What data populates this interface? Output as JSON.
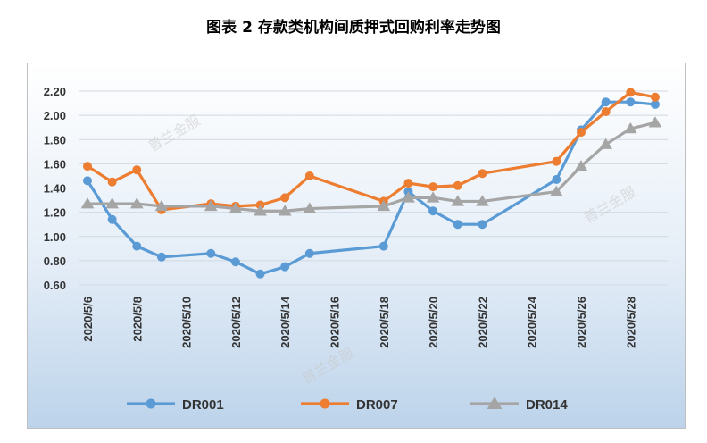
{
  "title": "图表 2  存款类机构间质押式回购利率走势图",
  "watermark": "普兰金服",
  "chart_data": {
    "type": "line",
    "ylim": [
      0.6,
      2.2
    ],
    "yticks": [
      0.6,
      0.8,
      1.0,
      1.2,
      1.4,
      1.6,
      1.8,
      2.0,
      2.2
    ],
    "ytick_labels": [
      "0.60",
      "0.80",
      "1.00",
      "1.20",
      "1.40",
      "1.60",
      "1.80",
      "2.00",
      "2.20"
    ],
    "x_dates": [
      "2020/5/6",
      "2020/5/7",
      "2020/5/8",
      "2020/5/9",
      "2020/5/11",
      "2020/5/12",
      "2020/5/13",
      "2020/5/14",
      "2020/5/15",
      "2020/5/18",
      "2020/5/19",
      "2020/5/20",
      "2020/5/21",
      "2020/5/22",
      "2020/5/25",
      "2020/5/26",
      "2020/5/27",
      "2020/5/28",
      "2020/5/29"
    ],
    "xtick_labels": [
      "2020/5/6",
      "2020/5/8",
      "2020/5/10",
      "2020/5/12",
      "2020/5/14",
      "2020/5/16",
      "2020/5/18",
      "2020/5/20",
      "2020/5/22",
      "2020/5/24",
      "2020/5/26",
      "2020/5/28"
    ],
    "legend_position": "bottom",
    "series": [
      {
        "name": "DR001",
        "color": "#5b9bd5",
        "marker": "circle",
        "values": [
          1.46,
          1.14,
          0.92,
          0.83,
          0.86,
          0.79,
          0.69,
          0.75,
          0.86,
          0.92,
          1.37,
          1.21,
          1.1,
          1.1,
          1.47,
          1.88,
          2.11,
          2.11,
          2.09
        ]
      },
      {
        "name": "DR007",
        "color": "#ed7d31",
        "marker": "circle",
        "values": [
          1.58,
          1.45,
          1.55,
          1.22,
          1.27,
          1.25,
          1.26,
          1.32,
          1.5,
          1.29,
          1.44,
          1.41,
          1.42,
          1.52,
          1.62,
          1.86,
          2.03,
          2.19,
          2.15
        ]
      },
      {
        "name": "DR014",
        "color": "#a5a5a5",
        "marker": "triangle",
        "values": [
          1.27,
          1.27,
          1.27,
          1.25,
          1.25,
          1.23,
          1.21,
          1.21,
          1.23,
          1.25,
          1.32,
          1.32,
          1.29,
          1.29,
          1.37,
          1.58,
          1.76,
          1.89,
          1.94
        ]
      }
    ]
  }
}
